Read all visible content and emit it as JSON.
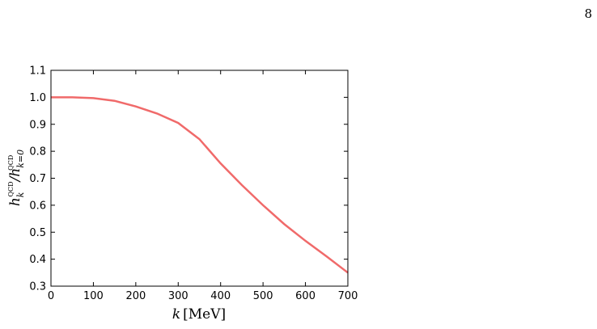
{
  "page_number": "8",
  "chart_data": {
    "type": "line",
    "x_label": [
      "k",
      "[MeV]"
    ],
    "y_label": [
      "h",
      "k",
      "QCD",
      "/h",
      "k=0",
      "QCD"
    ],
    "x": [
      0,
      50,
      100,
      150,
      200,
      250,
      300,
      350,
      400,
      450,
      500,
      550,
      600,
      650,
      700
    ],
    "series": [
      {
        "color": "#f06a6a",
        "values": [
          1.0,
          1.0,
          0.997,
          0.987,
          0.966,
          0.94,
          0.905,
          0.845,
          0.755,
          0.675,
          0.6,
          0.53,
          0.468,
          0.41,
          0.35
        ]
      }
    ],
    "xlim": [
      0,
      700
    ],
    "xticks": [
      0,
      100,
      200,
      300,
      400,
      500,
      600,
      700
    ],
    "ylim": [
      0.3,
      1.1
    ],
    "yticks": [
      {
        "value": 0.3,
        "label": "0.3"
      },
      {
        "value": 0.4,
        "label": "0.4"
      },
      {
        "value": 0.5,
        "label": "0.5"
      },
      {
        "value": 0.6,
        "label": "0.6"
      },
      {
        "value": 0.7,
        "label": "0.7"
      },
      {
        "value": 0.8,
        "label": "0.8"
      },
      {
        "value": 0.9,
        "label": "0.9"
      },
      {
        "value": 1.0,
        "label": "1.0"
      },
      {
        "value": 1.1,
        "label": "1.1"
      }
    ]
  }
}
